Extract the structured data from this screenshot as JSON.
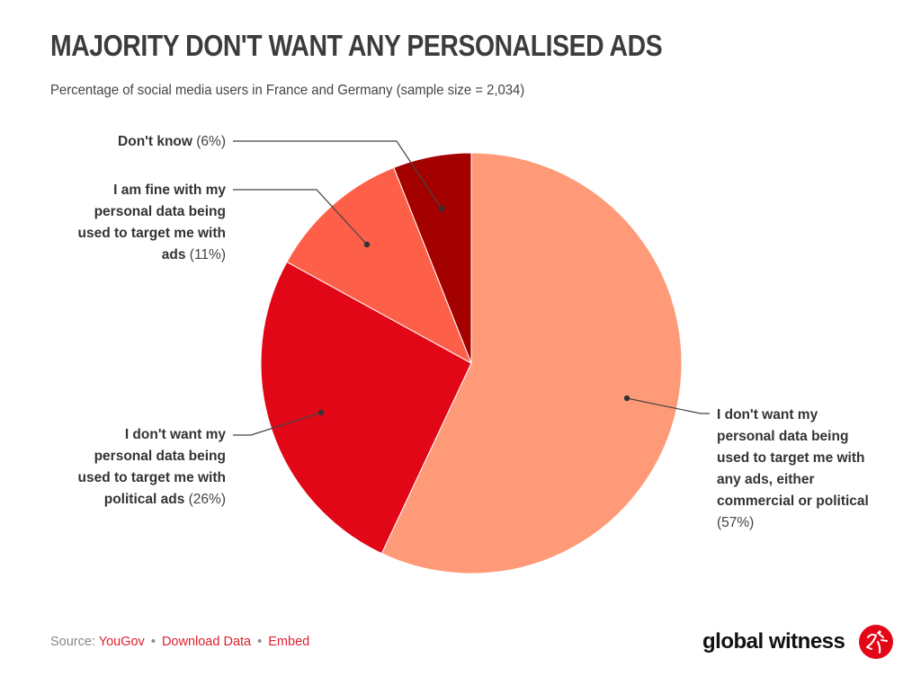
{
  "header": {
    "title": "MAJORITY DON'T WANT ANY PERSONALISED ADS",
    "subtitle": "Percentage of social media users in France and Germany (sample size = 2,034)"
  },
  "chart_data": {
    "type": "pie",
    "title": "MAJORITY DON'T WANT ANY PERSONALISED ADS",
    "subtitle": "Percentage of social media users in France and Germany (sample size = 2,034)",
    "start": "12 o'clock, clockwise",
    "slices": [
      {
        "label": "I don't want my personal data being used to target me with any ads, either commercial or political",
        "value": 57,
        "display": "(57%)",
        "color": "#FE9A77",
        "label_lines": [
          "I don't want my",
          "personal data being",
          "used to target me with",
          "any ads, either",
          "commercial or political"
        ],
        "label_side": "right"
      },
      {
        "label": "I don't want my personal data being used to target me with political ads",
        "value": 26,
        "display": "(26%)",
        "color": "#E20717",
        "label_lines": [
          "I don't want my",
          "personal data being",
          "used to target me with",
          "political ads"
        ],
        "label_side": "left"
      },
      {
        "label": "I am fine with my personal data being used to target me with ads",
        "value": 11,
        "display": "(11%)",
        "color": "#FE5F48",
        "label_lines": [
          "I am fine with my",
          "personal data being",
          "used to target me with",
          "ads"
        ],
        "label_side": "left"
      },
      {
        "label": "Don't know",
        "value": 6,
        "display": "(6%)",
        "color": "#A30000",
        "label_lines": [
          "Don't know"
        ],
        "label_side": "left"
      }
    ]
  },
  "footer": {
    "source_prefix": "Source: ",
    "source_link": "YouGov",
    "separator": "•",
    "download_link": "Download Data",
    "embed_link": "Embed",
    "link_color": "#E0202E"
  },
  "brand": {
    "name": "global witness",
    "logo_color": "#E20717"
  }
}
